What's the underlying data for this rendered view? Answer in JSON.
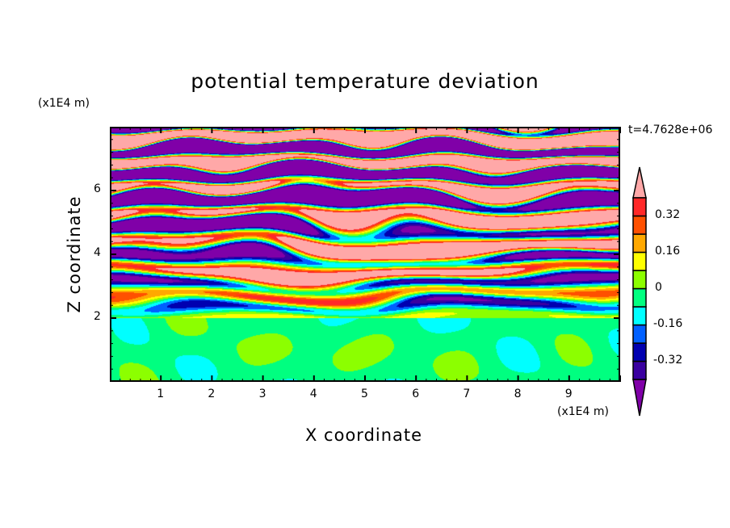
{
  "chart_data": {
    "type": "heatmap",
    "title": "potential temperature deviation",
    "xlabel": "X coordinate",
    "ylabel": "Z coordinate",
    "x_unit": "(x1E4 m)",
    "y_unit": "(x1E4 m)",
    "time_label": "t=4.7628e+06",
    "xlim": [
      0,
      10
    ],
    "ylim": [
      0,
      8
    ],
    "xticks": [
      "1",
      "2",
      "3",
      "4",
      "5",
      "6",
      "7",
      "8",
      "9"
    ],
    "yticks": [
      "2",
      "4",
      "6"
    ],
    "colorbar": {
      "levels": [
        -0.4,
        -0.32,
        -0.24,
        -0.16,
        -0.08,
        0,
        0.08,
        0.16,
        0.24,
        0.32,
        0.4
      ],
      "labels": [
        "0.32",
        "0.16",
        "0",
        "-0.16",
        "-0.32"
      ],
      "label_values": [
        0.32,
        0.16,
        0,
        -0.16,
        -0.32
      ],
      "colors": [
        "#8000a8",
        "#3a00a0",
        "#0000b0",
        "#0060ff",
        "#00ffff",
        "#00ff80",
        "#8cff00",
        "#ffff00",
        "#ffa800",
        "#ff5000",
        "#ff2828",
        "#ffa8a8"
      ],
      "extend": "both"
    },
    "field_description_regions": [
      {
        "z_range": [
          0,
          2
        ],
        "typical_value": -0.02
      },
      {
        "z_range": [
          2,
          8
        ],
        "pattern": "horizontal layered anomalies, amplitude increasing with height"
      }
    ]
  }
}
